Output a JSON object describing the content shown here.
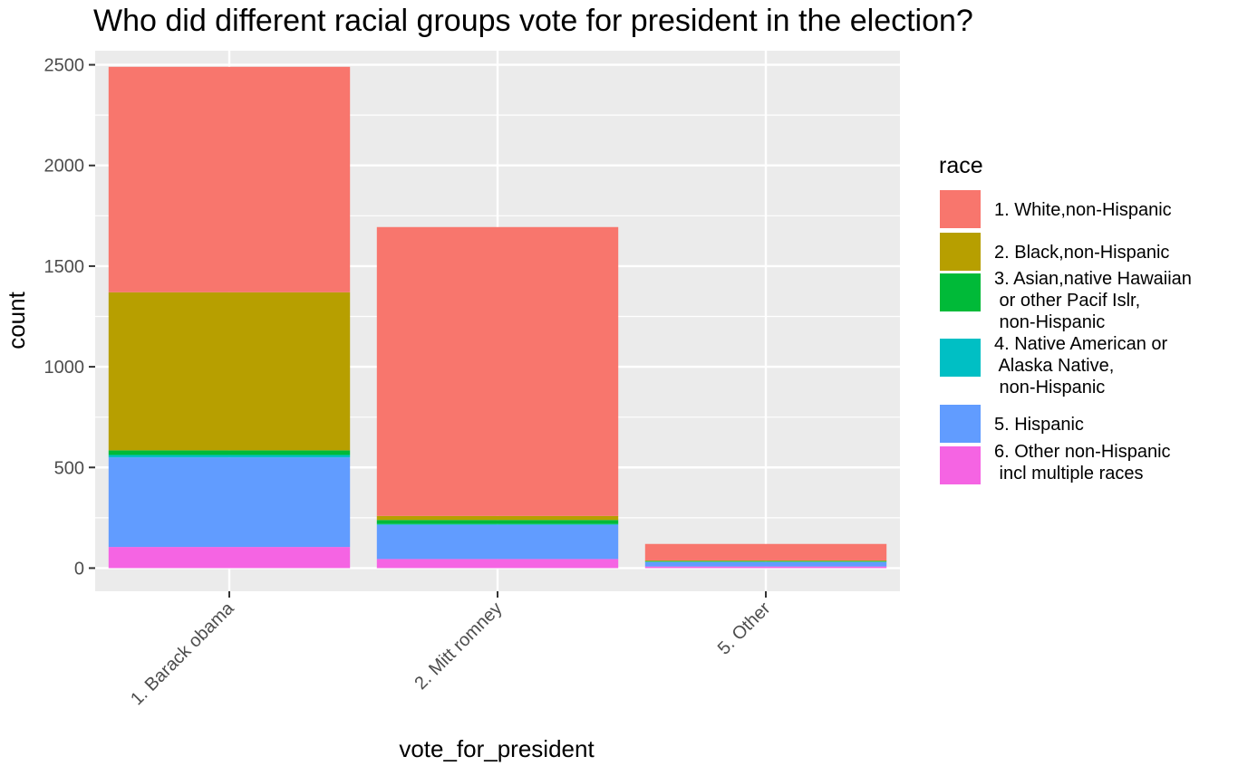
{
  "chart_data": {
    "type": "bar",
    "stacked": true,
    "title": "Who did different racial groups vote for president in the election?",
    "xlabel": "vote_for_president",
    "ylabel": "count",
    "categories": [
      "1. Barack obama",
      "2. Mitt romney",
      "5. Other"
    ],
    "ylim": [
      -115,
      2570
    ],
    "yticks": [
      0,
      500,
      1000,
      1500,
      2000,
      2500
    ],
    "grid": true,
    "legend": {
      "title": "race",
      "position": "right"
    },
    "series": [
      {
        "name": "6. Other non-Hispanic\n incl multiple races",
        "color": "#F564E3",
        "values": [
          105,
          45,
          8
        ]
      },
      {
        "name": "5. Hispanic",
        "color": "#619CFF",
        "values": [
          445,
          170,
          22
        ]
      },
      {
        "name": "4. Native American or\n Alaska Native,\n non-Hispanic",
        "color": "#00BFC4",
        "values": [
          12,
          4,
          2
        ]
      },
      {
        "name": "3. Asian,native Hawaiian\n or other Pacif Islr,\n non-Hispanic",
        "color": "#00BA38",
        "values": [
          23,
          20,
          3
        ]
      },
      {
        "name": "2. Black,non-Hispanic",
        "color": "#B79F00",
        "values": [
          785,
          20,
          3
        ]
      },
      {
        "name": "1. White,non-Hispanic",
        "color": "#F8766D",
        "values": [
          1120,
          1435,
          82
        ]
      }
    ]
  }
}
